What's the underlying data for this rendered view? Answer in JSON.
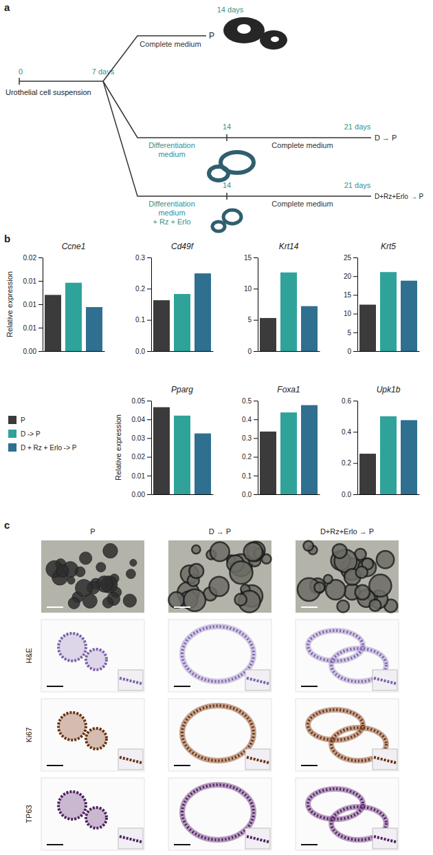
{
  "panel_labels": [
    "a",
    "b",
    "c"
  ],
  "diagram": {
    "start": "0",
    "start_label": "Urothelial cell suspension",
    "branch_point": "7 days",
    "branches": [
      {
        "medium": [
          "Complete medium"
        ],
        "end_day": "14 days",
        "result": "P"
      },
      {
        "medium": [
          "Differentiation",
          "medium"
        ],
        "switch_day": "14",
        "second_medium": "Complete medium",
        "end_day": "21 days",
        "result": "D → P"
      },
      {
        "medium": [
          "Differentiation",
          "medium",
          "+ Rz + Erlo"
        ],
        "switch_day": "14",
        "second_medium": "Complete medium",
        "end_day": "21 days",
        "result": "D+Rz+Erlo → P"
      }
    ]
  },
  "key": {
    "labels": [
      "P",
      "D -> P",
      "D + Rz + Erlo -> P"
    ],
    "colors": [
      "#3b3b3b",
      "#2fa39a",
      "#2f6f8f"
    ]
  },
  "chart_data": [
    {
      "type": "bar",
      "title": "Ccne1",
      "y_label": "Relative expression",
      "categories": [
        null,
        null,
        null
      ],
      "values": [
        0.012,
        0.0146,
        0.0094
      ],
      "colors": [
        "#3b3b3b",
        "#2fa39a",
        "#2f6f8f"
      ],
      "ylim": [
        0,
        0.02
      ],
      "yticks": [
        {
          "value": 0,
          "label": "0.00"
        },
        {
          "value": 0.005,
          "label": "0.01"
        },
        0.01,
        {
          "value": 0.015,
          "label": "0.01"
        },
        0.02
      ]
    },
    {
      "type": "bar",
      "title": "Cd49f",
      "categories": [
        null,
        null,
        null
      ],
      "values": [
        0.163,
        0.183,
        0.249
      ],
      "colors": [
        "#3b3b3b",
        "#2fa39a",
        "#2f6f8f"
      ],
      "ylim": [
        0,
        0.3
      ],
      "yticks": [
        {
          "value": 0,
          "label": "0.0"
        },
        0.1,
        0.2,
        0.3
      ]
    },
    {
      "type": "bar",
      "title": "Krt14",
      "categories": [
        null,
        null,
        null
      ],
      "values": [
        5.3,
        12.6,
        7.2
      ],
      "colors": [
        "#3b3b3b",
        "#2fa39a",
        "#2f6f8f"
      ],
      "ylim": [
        0,
        15
      ],
      "yticks": [
        0,
        5,
        10,
        15
      ]
    },
    {
      "type": "bar",
      "title": "Krt5",
      "categories": [
        null,
        null,
        null
      ],
      "values": [
        12.4,
        21.1,
        18.8
      ],
      "colors": [
        "#3b3b3b",
        "#2fa39a",
        "#2f6f8f"
      ],
      "ylim": [
        0,
        25
      ],
      "yticks": [
        0,
        5,
        10,
        15,
        20,
        25
      ]
    },
    {
      "type": "bar",
      "title": "Pparg",
      "y_label": "Relative expression",
      "categories": [
        null,
        null,
        null
      ],
      "values": [
        0.0465,
        0.042,
        0.0325
      ],
      "colors": [
        "#3b3b3b",
        "#2fa39a",
        "#2f6f8f"
      ],
      "ylim": [
        0,
        0.05
      ],
      "yticks": [
        {
          "value": 0,
          "label": "0.00"
        },
        0.01,
        0.02,
        0.03,
        0.04,
        0.05
      ]
    },
    {
      "type": "bar",
      "title": "Foxa1",
      "categories": [
        null,
        null,
        null
      ],
      "values": [
        0.335,
        0.437,
        0.476
      ],
      "colors": [
        "#3b3b3b",
        "#2fa39a",
        "#2f6f8f"
      ],
      "ylim": [
        0,
        0.5
      ],
      "yticks": [
        {
          "value": 0,
          "label": "0.0"
        },
        0.1,
        0.2,
        0.3,
        0.4,
        0.5
      ]
    },
    {
      "type": "bar",
      "title": "Upk1b",
      "categories": [
        null,
        null,
        null
      ],
      "values": [
        0.26,
        0.5,
        0.475
      ],
      "colors": [
        "#3b3b3b",
        "#2fa39a",
        "#2f6f8f"
      ],
      "ylim": [
        0,
        0.6
      ],
      "yticks": [
        {
          "value": 0,
          "label": "0.0"
        },
        0.2,
        0.4,
        0.6
      ]
    }
  ],
  "micrographs": {
    "columns": [
      "P",
      "D → P",
      "D+Rz+Erlo → P"
    ],
    "stains": [
      "H&E",
      "Ki67",
      "TP63"
    ]
  }
}
